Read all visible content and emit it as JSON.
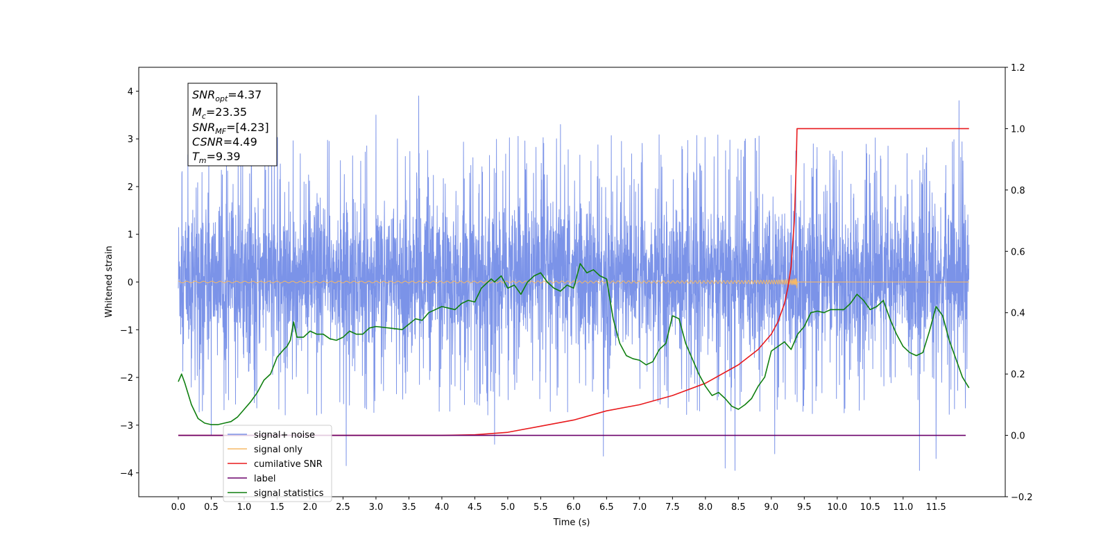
{
  "chart_data": {
    "type": "line",
    "xlabel": "Time (s)",
    "ylabel": "Whitened strain",
    "xlim": [
      -0.6,
      12.55
    ],
    "ylim_left": [
      -4.5,
      4.5
    ],
    "ylim_right": [
      -0.2,
      1.2
    ],
    "x_ticks": [
      0.0,
      0.5,
      1.0,
      1.5,
      2.0,
      2.5,
      3.0,
      3.5,
      4.0,
      4.5,
      5.0,
      5.5,
      6.0,
      6.5,
      7.0,
      7.5,
      8.0,
      8.5,
      9.0,
      9.5,
      10.0,
      10.5,
      11.0,
      11.5
    ],
    "x_tick_labels": [
      "0.0",
      "0.5",
      "1.0",
      "1.5",
      "2.0",
      "2.5",
      "3.0",
      "3.5",
      "4.0",
      "4.5",
      "5.0",
      "5.5",
      "6.0",
      "6.5",
      "7.0",
      "7.5",
      "8.0",
      "8.5",
      "9.0",
      "9.5",
      "10.0",
      "10.5",
      "11.0",
      "11.5"
    ],
    "y_ticks_left": [
      -4,
      -3,
      -2,
      -1,
      0,
      1,
      2,
      3,
      4
    ],
    "y_tick_labels_left": [
      "−4",
      "−3",
      "−2",
      "−1",
      "0",
      "1",
      "2",
      "3",
      "4"
    ],
    "y_ticks_right": [
      -0.2,
      0.0,
      0.2,
      0.4,
      0.6,
      0.8,
      1.0,
      1.2
    ],
    "y_tick_labels_right": [
      "−0.2",
      "0.0",
      "0.2",
      "0.4",
      "0.6",
      "0.8",
      "1.0",
      "1.2"
    ],
    "grid": false,
    "legend_position": "bottom-left",
    "info_box": [
      {
        "base": "SNR",
        "sub": "opt",
        "rest": "=4.37"
      },
      {
        "base": "M",
        "sub": "c",
        "rest": "=23.35"
      },
      {
        "base": "SNR",
        "sub": "MF",
        "rest": "=[4.23]"
      },
      {
        "base": "CSNR",
        "sub": "",
        "rest": "=4.49"
      },
      {
        "base": "T",
        "sub": "m",
        "rest": "=9.39"
      }
    ],
    "series": [
      {
        "name": "signal+ noise",
        "axis": "left",
        "color": "#7b93e8",
        "kind": "noise",
        "x_range": [
          0.0,
          12.0
        ],
        "typical_envelope": [
          -1.8,
          2.0
        ],
        "extremes": [
          {
            "x": 3.65,
            "y": 3.9
          },
          {
            "x": 11.85,
            "y": 3.8
          },
          {
            "x": 3.0,
            "y": 3.5
          },
          {
            "x": 5.8,
            "y": 3.3
          },
          {
            "x": 0.5,
            "y": -3.2
          },
          {
            "x": 2.55,
            "y": -3.85
          },
          {
            "x": 6.45,
            "y": -3.65
          },
          {
            "x": 8.3,
            "y": -3.9
          },
          {
            "x": 8.45,
            "y": -3.95
          },
          {
            "x": 9.05,
            "y": -3.6
          },
          {
            "x": 11.25,
            "y": -3.95
          },
          {
            "x": 11.5,
            "y": -3.7
          },
          {
            "x": 4.8,
            "y": -3.4
          }
        ]
      },
      {
        "name": "signal only",
        "axis": "left",
        "color": "#f5b866",
        "kind": "chirp",
        "t_merger": 9.39,
        "peak_amplitude": 1.0,
        "x_range": [
          0.0,
          12.0
        ]
      },
      {
        "name": "cumilative SNR",
        "axis": "right",
        "color": "#e8191c",
        "x": [
          0.0,
          4.0,
          4.5,
          5.0,
          5.5,
          6.0,
          6.5,
          7.0,
          7.5,
          8.0,
          8.5,
          8.8,
          9.0,
          9.1,
          9.2,
          9.25,
          9.3,
          9.35,
          9.38,
          9.39,
          9.4,
          12.0
        ],
        "y": [
          0.0,
          0.0,
          0.002,
          0.01,
          0.03,
          0.05,
          0.08,
          0.1,
          0.13,
          0.17,
          0.23,
          0.28,
          0.33,
          0.37,
          0.43,
          0.48,
          0.55,
          0.7,
          0.9,
          1.0,
          1.0,
          1.0
        ]
      },
      {
        "name": "label",
        "axis": "right",
        "color": "#6a006a",
        "x": [
          0.0,
          11.95
        ],
        "y": [
          0.0,
          0.0
        ]
      },
      {
        "name": "signal statistics",
        "axis": "right",
        "color": "#0f7f0f",
        "x": [
          0.0,
          0.05,
          0.1,
          0.2,
          0.3,
          0.4,
          0.5,
          0.6,
          0.7,
          0.8,
          0.9,
          1.0,
          1.1,
          1.2,
          1.3,
          1.4,
          1.5,
          1.6,
          1.65,
          1.7,
          1.75,
          1.8,
          1.9,
          2.0,
          2.1,
          2.2,
          2.3,
          2.4,
          2.5,
          2.6,
          2.7,
          2.8,
          2.9,
          3.0,
          3.2,
          3.4,
          3.6,
          3.7,
          3.8,
          3.9,
          4.0,
          4.1,
          4.2,
          4.3,
          4.4,
          4.5,
          4.6,
          4.7,
          4.75,
          4.8,
          4.9,
          5.0,
          5.1,
          5.2,
          5.3,
          5.4,
          5.5,
          5.6,
          5.7,
          5.8,
          5.9,
          6.0,
          6.1,
          6.2,
          6.3,
          6.4,
          6.5,
          6.6,
          6.7,
          6.8,
          6.9,
          7.0,
          7.1,
          7.2,
          7.3,
          7.4,
          7.5,
          7.6,
          7.7,
          7.8,
          7.9,
          8.0,
          8.1,
          8.2,
          8.3,
          8.4,
          8.5,
          8.6,
          8.7,
          8.8,
          8.9,
          9.0,
          9.1,
          9.2,
          9.3,
          9.4,
          9.5,
          9.6,
          9.7,
          9.8,
          9.9,
          10.0,
          10.1,
          10.2,
          10.3,
          10.4,
          10.5,
          10.6,
          10.7,
          10.8,
          10.9,
          11.0,
          11.1,
          11.2,
          11.3,
          11.4,
          11.5,
          11.6,
          11.7,
          11.8,
          11.9,
          12.0
        ],
        "y": [
          0.175,
          0.2,
          0.17,
          0.1,
          0.055,
          0.04,
          0.035,
          0.035,
          0.04,
          0.045,
          0.06,
          0.085,
          0.11,
          0.14,
          0.18,
          0.2,
          0.255,
          0.28,
          0.29,
          0.31,
          0.37,
          0.32,
          0.32,
          0.34,
          0.33,
          0.33,
          0.315,
          0.31,
          0.32,
          0.34,
          0.33,
          0.33,
          0.35,
          0.355,
          0.35,
          0.345,
          0.38,
          0.375,
          0.4,
          0.41,
          0.42,
          0.415,
          0.41,
          0.43,
          0.44,
          0.435,
          0.48,
          0.5,
          0.51,
          0.5,
          0.52,
          0.48,
          0.49,
          0.46,
          0.5,
          0.52,
          0.53,
          0.5,
          0.48,
          0.47,
          0.49,
          0.48,
          0.56,
          0.53,
          0.54,
          0.52,
          0.51,
          0.38,
          0.3,
          0.26,
          0.25,
          0.245,
          0.23,
          0.24,
          0.28,
          0.3,
          0.39,
          0.38,
          0.3,
          0.25,
          0.2,
          0.16,
          0.13,
          0.14,
          0.12,
          0.095,
          0.085,
          0.1,
          0.12,
          0.16,
          0.19,
          0.275,
          0.29,
          0.305,
          0.28,
          0.33,
          0.355,
          0.4,
          0.405,
          0.4,
          0.41,
          0.41,
          0.41,
          0.43,
          0.46,
          0.44,
          0.41,
          0.42,
          0.44,
          0.38,
          0.33,
          0.29,
          0.27,
          0.26,
          0.27,
          0.34,
          0.42,
          0.39,
          0.31,
          0.25,
          0.19,
          0.155
        ]
      }
    ]
  }
}
